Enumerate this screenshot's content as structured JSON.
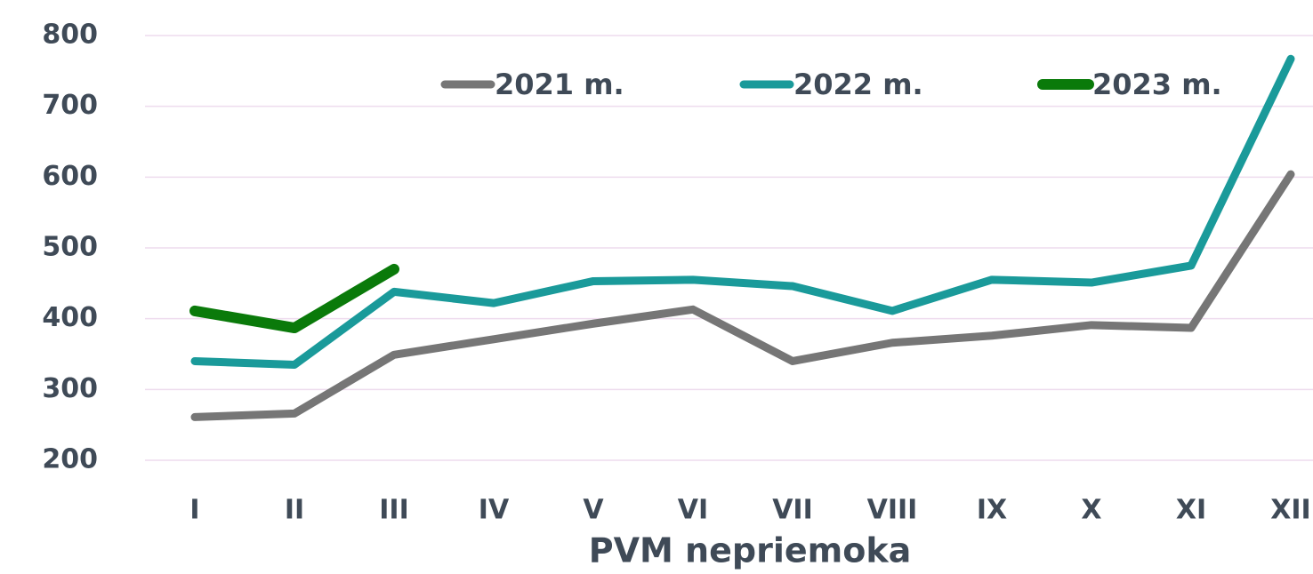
{
  "chart_data": {
    "type": "line",
    "x_label": "PVM nepriemoka",
    "categories": [
      "I",
      "II",
      "III",
      "IV",
      "V",
      "VI",
      "VII",
      "VIII",
      "IX",
      "X",
      "XI",
      "XII"
    ],
    "series": [
      {
        "name": "2021 m.",
        "color": "#767676",
        "values": [
          261,
          266,
          349,
          371,
          393,
          413,
          340,
          366,
          376,
          391,
          387,
          604
        ]
      },
      {
        "name": "2022 m.",
        "color": "#1a9a9a",
        "values": [
          340,
          335,
          438,
          422,
          453,
          455,
          446,
          411,
          455,
          451,
          475,
          767
        ]
      },
      {
        "name": "2023 m.",
        "color": "#0a7a0a",
        "values": [
          411,
          387,
          470,
          null,
          null,
          null,
          null,
          null,
          null,
          null,
          null,
          null
        ]
      }
    ],
    "ylim": [
      200,
      800
    ],
    "yticks": [
      200,
      300,
      400,
      500,
      600,
      700,
      800
    ],
    "grid": true,
    "legend": "top"
  }
}
